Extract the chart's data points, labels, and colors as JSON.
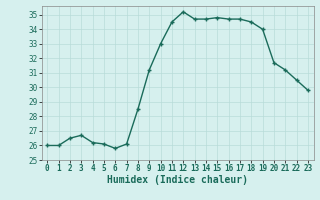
{
  "x": [
    0,
    1,
    2,
    3,
    4,
    5,
    6,
    7,
    8,
    9,
    10,
    11,
    12,
    13,
    14,
    15,
    16,
    17,
    18,
    19,
    20,
    21,
    22,
    23
  ],
  "y": [
    26.0,
    26.0,
    26.5,
    26.7,
    26.2,
    26.1,
    25.8,
    26.1,
    28.5,
    31.2,
    33.0,
    34.5,
    35.2,
    34.7,
    34.7,
    34.8,
    34.7,
    34.7,
    34.5,
    34.0,
    31.7,
    31.2,
    30.5,
    29.8
  ],
  "line_color": "#1a6b5a",
  "marker": "D",
  "marker_size": 2.5,
  "bg_color": "#d6f0ee",
  "grid_color": "#b8dcd9",
  "xlabel": "Humidex (Indice chaleur)",
  "ylim": [
    25,
    35.6
  ],
  "xlim": [
    -0.5,
    23.5
  ],
  "yticks": [
    25,
    26,
    27,
    28,
    29,
    30,
    31,
    32,
    33,
    34,
    35
  ],
  "xticks": [
    0,
    1,
    2,
    3,
    4,
    5,
    6,
    7,
    8,
    9,
    10,
    11,
    12,
    13,
    14,
    15,
    16,
    17,
    18,
    19,
    20,
    21,
    22,
    23
  ],
  "tick_fontsize": 5.5,
  "xlabel_fontsize": 7,
  "line_width": 1.0
}
